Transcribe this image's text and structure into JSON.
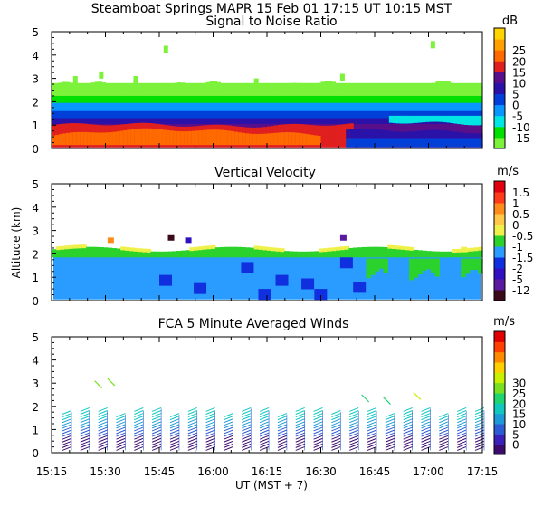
{
  "header": {
    "title": "Steamboat Springs  MAPR 15 Feb 01   17:15 UT   10:15   MST"
  },
  "colors": {
    "snr_scale": [
      "#7cf23a",
      "#00e000",
      "#00e4e4",
      "#0a96ff",
      "#0040d8",
      "#2a12a8",
      "#5a0f8a",
      "#e01f1f",
      "#ff6a00",
      "#ffa000",
      "#ffd400"
    ],
    "vel_scale": [
      "#3a0a1a",
      "#5a1aa0",
      "#3010c0",
      "#1030e0",
      "#2a9cff",
      "#2cd22c",
      "#f0f04a",
      "#ffc84a",
      "#ff8c1a",
      "#ff3a1a",
      "#e00010"
    ],
    "wind_scale": [
      "#3c0b6e",
      "#3a22b8",
      "#2c5cd4",
      "#1c9ad8",
      "#10c8c0",
      "#20d470",
      "#78e020",
      "#c8f000",
      "#ffd000",
      "#ff8a00",
      "#ff4000",
      "#e00000"
    ]
  },
  "chart_data": [
    {
      "type": "heatmap",
      "title": "Signal to Noise Ratio",
      "ylabel": "",
      "xlabel": "",
      "ylim": [
        0,
        5
      ],
      "y_ticks": [
        "0",
        "1",
        "2",
        "3",
        "4",
        "5"
      ],
      "colorbar_unit": "dB",
      "colorbar_labels": [
        "-15",
        "-10",
        "-5",
        "0",
        "5",
        "10",
        "15",
        "20",
        "25"
      ],
      "layers": [
        {
          "altitude_km": [
            0.0,
            0.35
          ],
          "snr_db": 20
        },
        {
          "altitude_km": [
            0.35,
            1.0
          ],
          "snr_db": 15
        },
        {
          "altitude_km": [
            1.0,
            1.25
          ],
          "snr_db": 10
        },
        {
          "altitude_km": [
            1.25,
            1.6
          ],
          "snr_db": 5
        },
        {
          "altitude_km": [
            1.6,
            2.1
          ],
          "snr_db": -5
        },
        {
          "altitude_km": [
            2.1,
            2.8
          ],
          "snr_db": -15
        }
      ]
    },
    {
      "type": "heatmap",
      "title": "Vertical Velocity",
      "ylabel": "Altitude (km)",
      "xlabel": "",
      "ylim": [
        0,
        5
      ],
      "y_ticks": [
        "0",
        "1",
        "2",
        "3",
        "4",
        "5"
      ],
      "colorbar_unit": "m/s",
      "colorbar_labels": [
        "-12",
        "-5",
        "-2",
        "-1.5",
        "-1",
        "-0.5",
        "0",
        "0.5",
        "1",
        "1.5"
      ],
      "layers": [
        {
          "altitude_km": [
            0.0,
            1.9
          ],
          "velocity_ms": -1
        },
        {
          "altitude_km": [
            1.9,
            2.1
          ],
          "velocity_ms": 0
        },
        {
          "altitude_km": [
            2.1,
            2.3
          ],
          "velocity_ms": 0.5
        }
      ]
    },
    {
      "type": "heatmap",
      "title": "FCA 5 Minute Averaged Winds",
      "ylabel": "",
      "xlabel": "UT  (MST + 7)",
      "ylim": [
        0,
        5
      ],
      "y_ticks": [
        "0",
        "1",
        "2",
        "3",
        "4",
        "5"
      ],
      "colorbar_unit": "m/s",
      "colorbar_labels": [
        "0",
        "5",
        "10",
        "15",
        "20",
        "25",
        "30"
      ],
      "x_ticks": [
        "15:15",
        "15:30",
        "15:45",
        "16:00",
        "16:15",
        "16:30",
        "16:45",
        "17:00",
        "17:15"
      ],
      "profile_speed_ms": [
        {
          "altitude_km": 0.2,
          "speed": 2
        },
        {
          "altitude_km": 0.6,
          "speed": 5
        },
        {
          "altitude_km": 1.0,
          "speed": 9
        },
        {
          "altitude_km": 1.4,
          "speed": 12
        },
        {
          "altitude_km": 1.8,
          "speed": 15
        }
      ]
    }
  ]
}
